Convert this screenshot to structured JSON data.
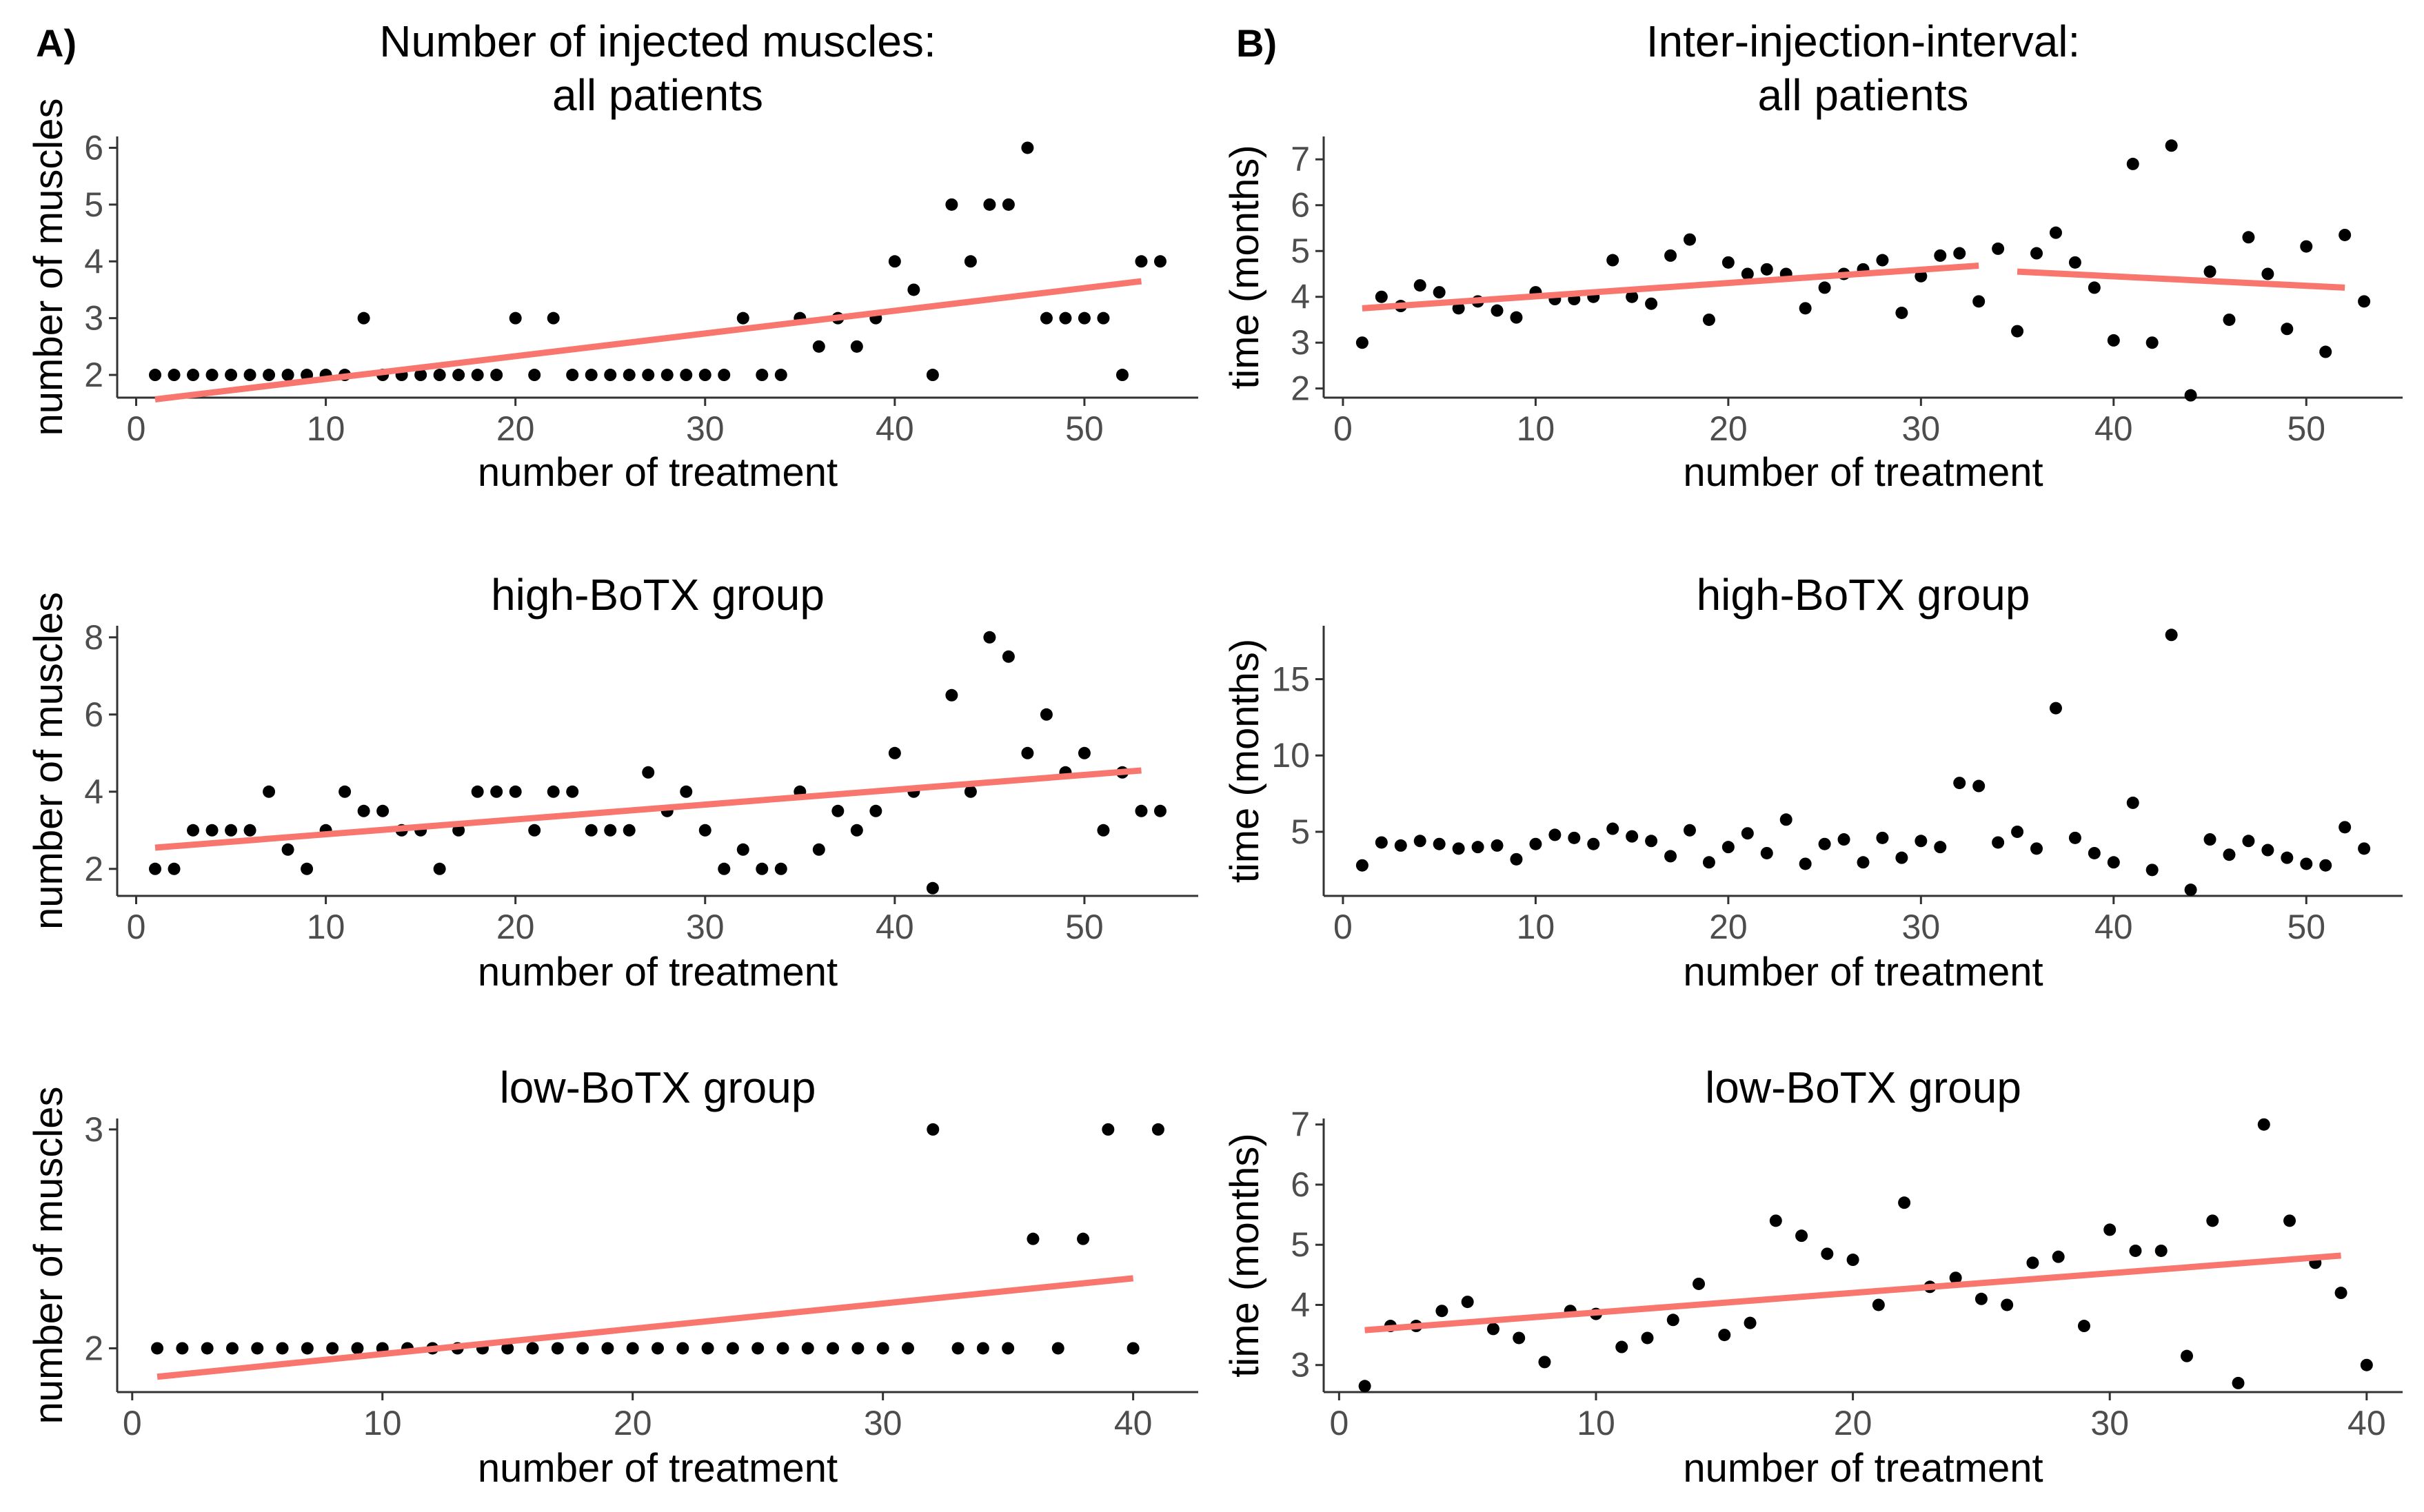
{
  "figure": {
    "letters": [
      "A)",
      "B)"
    ]
  },
  "colors": {
    "point": "#000000",
    "trend": "#f8766d",
    "axis": "#333333"
  },
  "chart_data": [
    {
      "id": "A1",
      "type": "scatter",
      "title": [
        "Number of injected muscles:",
        "all patients"
      ],
      "xlabel": "number of treatment",
      "ylabel": "number of muscles",
      "xlim": [
        -1,
        56
      ],
      "ylim": [
        1.6,
        6.2
      ],
      "xticks": [
        0,
        10,
        20,
        30,
        40,
        50
      ],
      "yticks": [
        2,
        3,
        4,
        5,
        6
      ],
      "x": [
        1,
        2,
        3,
        4,
        5,
        6,
        7,
        8,
        9,
        10,
        11,
        12,
        13,
        14,
        15,
        16,
        17,
        18,
        19,
        20,
        21,
        22,
        23,
        24,
        25,
        26,
        27,
        28,
        29,
        30,
        31,
        32,
        33,
        34,
        35,
        36,
        37,
        38,
        39,
        40,
        41,
        42,
        43,
        44,
        45,
        46,
        47,
        48,
        49,
        50,
        51,
        52,
        53,
        54
      ],
      "y": [
        2,
        2,
        2,
        2,
        2,
        2,
        2,
        2,
        2,
        2,
        2,
        3,
        2,
        2,
        2,
        2,
        2,
        2,
        2,
        3,
        2,
        3,
        2,
        2,
        2,
        2,
        2,
        2,
        2,
        2,
        2,
        3,
        2,
        2,
        3,
        2.5,
        3,
        2.5,
        3,
        4,
        3.5,
        2,
        5,
        4,
        5,
        5,
        6,
        3,
        3,
        3,
        3,
        2,
        4,
        4
      ],
      "trend": [
        {
          "x": [
            1,
            53
          ],
          "y": [
            1.57,
            3.65
          ]
        }
      ]
    },
    {
      "id": "B1",
      "type": "scatter",
      "title": [
        "Inter-injection-interval:",
        "all patients"
      ],
      "xlabel": "number of treatment",
      "ylabel": "time (months)",
      "xlim": [
        -1,
        55
      ],
      "ylim": [
        1.8,
        7.5
      ],
      "xticks": [
        0,
        10,
        20,
        30,
        40,
        50
      ],
      "yticks": [
        2,
        3,
        4,
        5,
        6,
        7
      ],
      "x": [
        1,
        2,
        3,
        4,
        5,
        6,
        7,
        8,
        9,
        10,
        11,
        12,
        13,
        14,
        15,
        16,
        17,
        18,
        19,
        20,
        21,
        22,
        23,
        24,
        25,
        26,
        27,
        28,
        29,
        30,
        31,
        32,
        33,
        34,
        35,
        36,
        37,
        38,
        39,
        40,
        41,
        42,
        43,
        44,
        45,
        46,
        47,
        48,
        49,
        50,
        51,
        52,
        53
      ],
      "y": [
        3.0,
        4.0,
        3.8,
        4.25,
        4.1,
        3.75,
        3.9,
        3.7,
        3.55,
        4.1,
        3.95,
        3.95,
        4.0,
        4.8,
        4.0,
        3.85,
        4.9,
        5.25,
        3.5,
        4.75,
        4.5,
        4.6,
        4.5,
        3.75,
        4.2,
        4.5,
        4.6,
        4.8,
        3.65,
        4.45,
        4.9,
        4.95,
        3.9,
        5.05,
        3.25,
        4.95,
        5.4,
        4.75,
        4.2,
        3.05,
        6.9,
        3.0,
        7.3,
        1.85,
        4.55,
        3.5,
        5.3,
        4.5,
        3.3,
        5.1,
        2.8,
        5.35,
        3.9
      ],
      "trend": [
        {
          "x": [
            1,
            33
          ],
          "y": [
            3.75,
            4.68
          ]
        },
        {
          "x": [
            35,
            52
          ],
          "y": [
            4.55,
            4.2
          ]
        }
      ]
    },
    {
      "id": "A2",
      "type": "scatter",
      "title": [
        "high-BoTX group"
      ],
      "xlabel": "number of treatment",
      "ylabel": "number of muscles",
      "xlim": [
        -1,
        56
      ],
      "ylim": [
        1.3,
        8.3
      ],
      "xticks": [
        0,
        10,
        20,
        30,
        40,
        50
      ],
      "yticks": [
        2,
        4,
        6,
        8
      ],
      "x": [
        1,
        2,
        3,
        4,
        5,
        6,
        7,
        8,
        9,
        10,
        11,
        12,
        13,
        14,
        15,
        16,
        17,
        18,
        19,
        20,
        21,
        22,
        23,
        24,
        25,
        26,
        27,
        28,
        29,
        30,
        31,
        32,
        33,
        34,
        35,
        36,
        37,
        38,
        39,
        40,
        41,
        42,
        43,
        44,
        45,
        46,
        47,
        48,
        49,
        50,
        51,
        52,
        53,
        54
      ],
      "y": [
        2,
        2,
        3,
        3,
        3,
        3,
        4,
        2.5,
        2,
        3,
        4,
        3.5,
        3.5,
        3,
        3,
        2,
        3,
        4,
        4,
        4,
        3,
        4,
        4,
        3,
        3,
        3,
        4.5,
        3.5,
        4,
        3,
        2,
        2.5,
        2,
        2,
        4,
        2.5,
        3.5,
        3,
        3.5,
        5,
        4,
        1.5,
        6.5,
        4,
        8,
        7.5,
        5,
        6,
        4.5,
        5,
        3,
        4.5,
        3.5,
        3.5
      ],
      "trend": [
        {
          "x": [
            1,
            53
          ],
          "y": [
            2.55,
            4.55
          ]
        }
      ]
    },
    {
      "id": "B2",
      "type": "scatter",
      "title": [
        "high-BoTX group"
      ],
      "xlabel": "number of treatment",
      "ylabel": "time (months)",
      "xlim": [
        -1,
        55
      ],
      "ylim": [
        0.8,
        18.5
      ],
      "xticks": [
        0,
        10,
        20,
        30,
        40,
        50
      ],
      "yticks": [
        5,
        10,
        15
      ],
      "x": [
        1,
        2,
        3,
        4,
        5,
        6,
        7,
        8,
        9,
        10,
        11,
        12,
        13,
        14,
        15,
        16,
        17,
        18,
        19,
        20,
        21,
        22,
        23,
        24,
        25,
        26,
        27,
        28,
        29,
        30,
        31,
        32,
        33,
        34,
        35,
        36,
        37,
        38,
        39,
        40,
        41,
        42,
        43,
        44,
        45,
        46,
        47,
        48,
        49,
        50,
        51,
        52,
        53
      ],
      "y": [
        2.8,
        4.3,
        4.1,
        4.4,
        4.2,
        3.9,
        4.0,
        4.1,
        3.2,
        4.2,
        4.8,
        4.6,
        4.2,
        5.2,
        4.7,
        4.4,
        3.4,
        5.1,
        3.0,
        4.0,
        4.9,
        3.6,
        5.8,
        2.9,
        4.2,
        4.5,
        3.0,
        4.6,
        3.3,
        4.4,
        4.0,
        8.2,
        8.0,
        4.3,
        5.0,
        3.9,
        13.1,
        4.6,
        3.6,
        3.0,
        6.9,
        2.5,
        17.9,
        1.2,
        4.5,
        3.5,
        4.4,
        3.8,
        3.3,
        2.9,
        2.8,
        5.3,
        3.9
      ],
      "trend": []
    },
    {
      "id": "A3",
      "type": "scatter",
      "title": [
        "low-BoTX group"
      ],
      "xlabel": "number of treatment",
      "ylabel": "number of muscles",
      "xlim": [
        -0.6,
        42.6
      ],
      "ylim": [
        1.8,
        3.05
      ],
      "xticks": [
        0,
        10,
        20,
        30,
        40
      ],
      "yticks": [
        2,
        3
      ],
      "x": [
        1,
        2,
        3,
        4,
        5,
        6,
        7,
        8,
        9,
        10,
        11,
        12,
        13,
        14,
        15,
        16,
        17,
        18,
        19,
        20,
        21,
        22,
        23,
        24,
        25,
        26,
        27,
        28,
        29,
        30,
        31,
        32,
        33,
        34,
        35,
        36,
        37,
        38,
        39,
        40,
        41
      ],
      "y": [
        2,
        2,
        2,
        2,
        2,
        2,
        2,
        2,
        2,
        2,
        2,
        2,
        2,
        2,
        2,
        2,
        2,
        2,
        2,
        2,
        2,
        2,
        2,
        2,
        2,
        2,
        2,
        2,
        2,
        2,
        2,
        3,
        2,
        2,
        2,
        2.5,
        2,
        2.5,
        3,
        2,
        3
      ],
      "trend": [
        {
          "x": [
            1,
            40
          ],
          "y": [
            1.87,
            2.32
          ]
        }
      ]
    },
    {
      "id": "B3",
      "type": "scatter",
      "title": [
        "low-BoTX group"
      ],
      "xlabel": "number of treatment",
      "ylabel": "time (months)",
      "xlim": [
        -0.6,
        41.4
      ],
      "ylim": [
        2.55,
        7.1
      ],
      "xticks": [
        0,
        10,
        20,
        30,
        40
      ],
      "yticks": [
        3,
        4,
        5,
        6,
        7
      ],
      "x": [
        1,
        2,
        3,
        4,
        5,
        6,
        7,
        8,
        9,
        10,
        11,
        12,
        13,
        14,
        15,
        16,
        17,
        18,
        19,
        20,
        21,
        22,
        23,
        24,
        25,
        26,
        27,
        28,
        29,
        30,
        31,
        32,
        33,
        34,
        35,
        36,
        37,
        38,
        39,
        40
      ],
      "y": [
        2.65,
        3.65,
        3.65,
        3.9,
        4.05,
        3.6,
        3.45,
        3.05,
        3.9,
        3.85,
        3.3,
        3.45,
        3.75,
        4.35,
        3.5,
        3.7,
        5.4,
        5.15,
        4.85,
        4.75,
        4.0,
        5.7,
        4.3,
        4.45,
        4.1,
        4.0,
        4.7,
        4.8,
        3.65,
        5.25,
        4.9,
        4.9,
        3.15,
        5.4,
        2.7,
        7.0,
        5.4,
        4.7,
        4.2,
        3.0
      ],
      "trend": [
        {
          "x": [
            1,
            39
          ],
          "y": [
            3.58,
            4.82
          ]
        }
      ]
    }
  ]
}
